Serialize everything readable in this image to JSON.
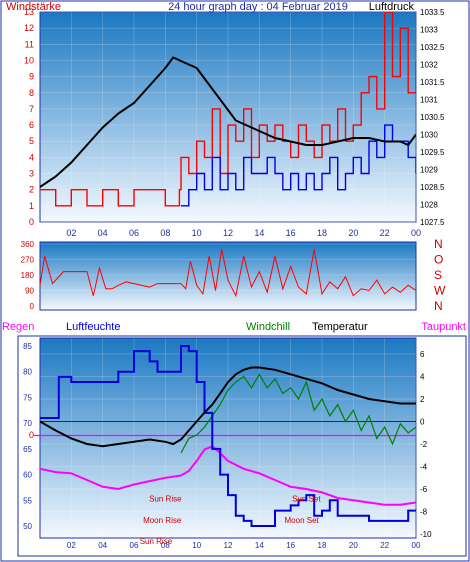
{
  "colors": {
    "frame_blue": "#1f2fa0",
    "plot_top": "#1a78c2",
    "plot_bottom": "#f4f9ff",
    "wind_red": "#ff0000",
    "wind_blue": "#0000ee",
    "pressure": "#000000",
    "humidity": "#0000dd",
    "windchill": "#008000",
    "temperature": "#000000",
    "dewpoint": "#ff00ff",
    "sun_moon": "#cc0000"
  },
  "chart_data": [
    {
      "type": "line",
      "panel": "wind-pressure",
      "title": "24 hour graph day : 04 Februar 2019",
      "left_axis_label": "Windstärke",
      "right_axis_label": "Luftdruck",
      "left_ticks": [
        "0",
        "1",
        "2",
        "3",
        "4",
        "5",
        "6",
        "7",
        "8",
        "9",
        "10",
        "11",
        "12",
        "13"
      ],
      "right_ticks": [
        "1027.5",
        "1028",
        "1028.5",
        "1029",
        "1029.5",
        "1030",
        "1030.5",
        "1031",
        "1031.5",
        "1032",
        "1032.5",
        "1033",
        "1033.5"
      ],
      "x_ticks": [
        "02",
        "04",
        "06",
        "08",
        "10",
        "12",
        "14",
        "16",
        "18",
        "20",
        "22",
        "00"
      ],
      "left_range": [
        0,
        13
      ],
      "right_range": [
        1027.5,
        1033.5
      ],
      "x_range": [
        0,
        24
      ],
      "series": [
        {
          "kind": "pressure",
          "x": [
            0,
            1,
            2,
            3,
            4,
            5,
            6,
            7,
            8,
            8.5,
            9,
            9.5,
            10,
            10.5,
            11,
            11.5,
            12,
            12.5,
            13,
            14,
            15,
            16,
            17,
            18,
            19,
            20,
            21,
            22,
            23,
            23.5,
            24
          ],
          "y": [
            1028.5,
            1028.8,
            1029.2,
            1029.7,
            1030.2,
            1030.6,
            1030.9,
            1031.4,
            1031.9,
            1032.2,
            1032.1,
            1032.0,
            1031.9,
            1031.6,
            1031.3,
            1031.0,
            1030.7,
            1030.4,
            1030.3,
            1030.1,
            1029.9,
            1029.8,
            1029.7,
            1029.7,
            1029.8,
            1029.9,
            1029.9,
            1029.8,
            1029.8,
            1029.7,
            1030.0
          ]
        },
        {
          "kind": "wind-gust",
          "x": [
            0,
            1,
            2,
            3,
            4,
            5,
            6,
            7,
            8,
            8.9,
            9,
            9.5,
            10,
            10.5,
            11,
            11.5,
            12,
            12.5,
            13,
            13.5,
            14,
            14.5,
            15,
            15.5,
            16,
            16.5,
            17,
            17.5,
            18,
            18.5,
            19,
            19.5,
            20,
            20.5,
            21,
            21.5,
            22,
            22.5,
            23,
            23.5,
            24
          ],
          "y": [
            2,
            1,
            2,
            1,
            2,
            1,
            2,
            2,
            1,
            2,
            4,
            3,
            5,
            4,
            7,
            3,
            6,
            5,
            7,
            4,
            6,
            5,
            6,
            5,
            4,
            6,
            5,
            4,
            6,
            5,
            7,
            5,
            6,
            8,
            9,
            7,
            13,
            9,
            12,
            8,
            10
          ]
        },
        {
          "kind": "wind-average",
          "x": [
            9,
            9.5,
            10,
            10.5,
            11,
            11.5,
            12,
            12.5,
            13,
            13.5,
            14,
            14.5,
            15,
            15.5,
            16,
            16.5,
            17,
            17.5,
            18,
            18.5,
            19,
            19.5,
            20,
            20.5,
            21,
            21.5,
            22,
            22.5,
            23,
            23.5,
            24
          ],
          "y": [
            1,
            2,
            3,
            2,
            4,
            2,
            3,
            2,
            4,
            3,
            3,
            4,
            3,
            2,
            3,
            2,
            3,
            2,
            3,
            4,
            2,
            3,
            4,
            3,
            5,
            4,
            6,
            5,
            5,
            4,
            3
          ]
        }
      ]
    },
    {
      "type": "line",
      "panel": "wind-direction",
      "left_ticks": [
        "0",
        "90",
        "180",
        "270",
        "360"
      ],
      "right_labels": [
        "N",
        "W",
        "S",
        "O",
        "N"
      ],
      "y_range": [
        0,
        360
      ],
      "x_range": [
        0,
        24
      ],
      "series": [
        {
          "kind": "direction",
          "x": [
            0,
            0.3,
            0.8,
            1.5,
            2,
            3,
            3.4,
            3.8,
            4.2,
            4.6,
            5,
            5.5,
            6,
            7,
            7.5,
            8,
            9,
            9.3,
            9.6,
            10,
            10.4,
            10.8,
            11.2,
            11.6,
            12,
            12.5,
            13,
            13.5,
            14,
            14.5,
            15,
            15.5,
            16,
            16.5,
            17,
            17.5,
            18,
            18.5,
            19,
            19.5,
            20,
            20.5,
            21,
            21.5,
            22,
            22.5,
            23,
            23.5,
            24
          ],
          "y": [
            120,
            290,
            130,
            200,
            200,
            200,
            60,
            220,
            100,
            100,
            120,
            140,
            130,
            110,
            130,
            130,
            130,
            100,
            260,
            120,
            70,
            290,
            90,
            330,
            150,
            60,
            290,
            110,
            200,
            80,
            290,
            100,
            230,
            110,
            70,
            330,
            70,
            140,
            100,
            170,
            60,
            100,
            90,
            150,
            70,
            110,
            80,
            120,
            90
          ]
        }
      ]
    },
    {
      "type": "line",
      "panel": "temperature-humidity",
      "header_labels": {
        "rain": "Regen",
        "humidity": "Luftfeuchte",
        "windchill": "Windchill",
        "temperature": "Temperatur",
        "dewpoint": "Taupunkt"
      },
      "left_ticks": [
        "50",
        "55",
        "60",
        "65",
        "70",
        "75",
        "80",
        "85"
      ],
      "left_range": [
        50,
        85
      ],
      "right_ticks": [
        "-10",
        "-8",
        "-6",
        "-4",
        "-2",
        "0",
        "2",
        "4",
        "6"
      ],
      "right_range": [
        -10,
        6
      ],
      "rain_zero_label": "0",
      "x_ticks": [
        "02",
        "04",
        "06",
        "08",
        "10",
        "12",
        "14",
        "16",
        "18",
        "20",
        "22",
        "00"
      ],
      "x_range": [
        0,
        24
      ],
      "annotations": [
        {
          "text": "Sun Rise",
          "x": 8.0,
          "temp": -7.1
        },
        {
          "text": "Moon Rise",
          "x": 7.8,
          "temp": -9.0
        },
        {
          "text": "Sun Set",
          "x": 17.0,
          "temp": -7.1
        },
        {
          "text": "Moon Set",
          "x": 16.7,
          "temp": -9.0
        },
        {
          "text": "Sun Rise",
          "x": 7.4,
          "temp": -10.9
        }
      ],
      "series": [
        {
          "kind": "humidity",
          "x": [
            0,
            1,
            1.2,
            2,
            3,
            4,
            5,
            5.5,
            6,
            7,
            7.5,
            8,
            8.5,
            9,
            9.5,
            10,
            10.5,
            11,
            11.5,
            12,
            12.5,
            13,
            13.5,
            14,
            15,
            16,
            16.5,
            17,
            17.5,
            18,
            18.5,
            19,
            20,
            21,
            22,
            23,
            23.5,
            24
          ],
          "y": [
            71,
            71,
            79,
            78,
            78,
            78,
            80,
            80,
            84,
            82,
            80,
            80,
            80,
            85,
            84,
            78,
            72,
            65,
            60,
            56,
            52,
            51,
            50,
            50,
            53,
            54,
            55,
            56,
            52,
            53,
            55,
            52,
            52,
            51,
            51,
            51,
            53,
            53
          ]
        },
        {
          "kind": "temperature",
          "x": [
            0,
            1,
            2,
            3,
            4,
            5,
            6,
            7,
            8,
            8.5,
            9,
            9.5,
            10,
            10.5,
            11,
            11.5,
            12,
            12.5,
            13,
            13.5,
            14,
            15,
            16,
            17,
            18,
            19,
            20,
            21,
            22,
            23,
            24
          ],
          "y": [
            0,
            -0.8,
            -1.5,
            -2.0,
            -2.2,
            -2.0,
            -1.8,
            -1.6,
            -1.8,
            -2.0,
            -1.6,
            -0.8,
            0,
            0.8,
            1.5,
            2.5,
            3.5,
            4.2,
            4.6,
            4.8,
            4.8,
            4.6,
            4.2,
            3.8,
            3.4,
            2.8,
            2.4,
            2.0,
            1.8,
            1.6,
            1.6
          ]
        },
        {
          "kind": "windchill",
          "x": [
            9,
            9.5,
            10,
            10.5,
            11,
            11.5,
            12,
            12.5,
            13,
            13.5,
            14,
            14.5,
            15,
            15.5,
            16,
            16.5,
            17,
            17.5,
            18,
            18.5,
            19,
            19.5,
            20,
            20.5,
            21,
            21.5,
            22,
            22.5,
            23,
            23.5,
            24
          ],
          "y": [
            -2.8,
            -1.5,
            -1.2,
            -0.5,
            0.5,
            1.5,
            2.8,
            3.5,
            4.0,
            3.0,
            4.2,
            3.0,
            3.8,
            2.5,
            3.0,
            2.0,
            3.5,
            1.0,
            2.0,
            0.5,
            1.5,
            0,
            1.0,
            -0.8,
            0.5,
            -1.5,
            -0.5,
            -2.0,
            -0.2,
            -1.0,
            -0.5
          ]
        },
        {
          "kind": "dewpoint",
          "x": [
            0,
            1,
            2,
            3,
            4,
            5,
            6,
            7,
            8,
            9,
            9.5,
            10,
            10.5,
            11,
            11.5,
            12,
            13,
            14,
            15,
            16,
            17,
            18,
            19,
            20,
            21,
            22,
            23,
            24
          ],
          "y": [
            -4.2,
            -4.5,
            -4.6,
            -5.2,
            -5.8,
            -6.0,
            -5.6,
            -5.3,
            -5.0,
            -4.8,
            -4.4,
            -3.5,
            -2.5,
            -2.2,
            -2.8,
            -3.5,
            -4.2,
            -4.6,
            -5.2,
            -5.8,
            -6.0,
            -6.3,
            -6.8,
            -7.0,
            -7.2,
            -7.4,
            -7.4,
            -7.2
          ]
        }
      ]
    }
  ]
}
